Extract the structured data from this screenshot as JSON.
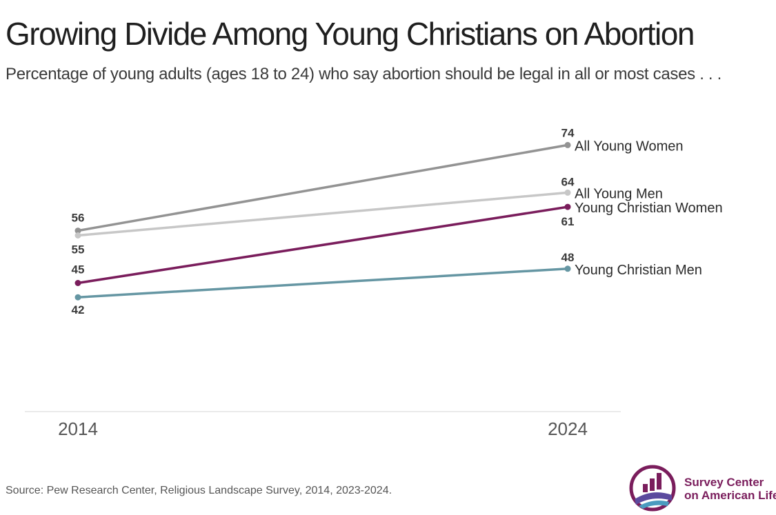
{
  "title": "Growing Divide Among Young Christians on Abortion",
  "subtitle": "Percentage of young adults (ages 18 to 24) who say abortion should be legal in all or most cases . . .",
  "source": "Source: Pew Research Center, Religious Landscape Survey, 2014, 2023-2024.",
  "logo": {
    "line1": "Survey Center",
    "line2": "on American Life"
  },
  "colors": {
    "accent": "#7a1d5c",
    "logo_blue": "#5b4a9e"
  },
  "chart_data": {
    "type": "line",
    "x": [
      "2014",
      "2024"
    ],
    "series": [
      {
        "name": "All Young Women",
        "values": [
          56,
          74
        ],
        "color": "#939393"
      },
      {
        "name": "All Young Men",
        "values": [
          55,
          64
        ],
        "color": "#c7c7c7"
      },
      {
        "name": "Young Christian Women",
        "values": [
          45,
          61
        ],
        "color": "#7a1d5c"
      },
      {
        "name": "Young Christian Men",
        "values": [
          42,
          48
        ],
        "color": "#6596a3"
      }
    ],
    "grid": false,
    "legend": "direct labels at line ends"
  }
}
